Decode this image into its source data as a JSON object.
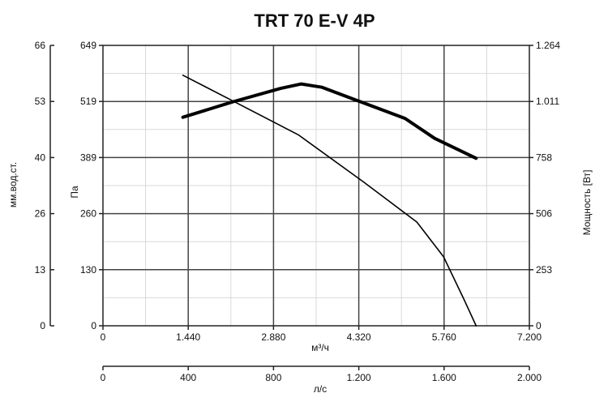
{
  "chart_data": {
    "type": "line",
    "title": "TRT 70 E-V 4P",
    "xlabel": "м³/ч",
    "ylabel": "Па",
    "x_ticks": [
      "0",
      "1.440",
      "2.880",
      "4.320",
      "5.760",
      "7.200"
    ],
    "xlim": [
      0,
      7200
    ],
    "y_ticks": [
      "0",
      "130",
      "260",
      "389",
      "519",
      "649"
    ],
    "ylim": [
      0,
      649
    ],
    "secondary_x": {
      "label": "л/с",
      "ticks": [
        "0",
        "400",
        "800",
        "1.200",
        "1.600",
        "2.000"
      ],
      "lim": [
        0,
        2000
      ]
    },
    "secondary_y_left": {
      "label": "мм.вод.ст.",
      "ticks": [
        "0",
        "13",
        "26",
        "40",
        "53",
        "66"
      ],
      "lim": [
        0,
        66
      ]
    },
    "secondary_y_right": {
      "label": "Мощность [Вт]",
      "ticks": [
        "0",
        "253",
        "506",
        "758",
        "1.011",
        "1.264"
      ],
      "lim": [
        0,
        1264
      ]
    },
    "grid": true,
    "series": [
      {
        "axis": "left",
        "values": [
          [
            1350,
            580
          ],
          [
            2200,
            520
          ],
          [
            3300,
            442
          ],
          [
            4400,
            333
          ],
          [
            5300,
            240
          ],
          [
            5750,
            160
          ],
          [
            6100,
            60
          ],
          [
            6300,
            0
          ]
        ]
      },
      {
        "axis": "right",
        "values": [
          [
            1350,
            940
          ],
          [
            2200,
            1010
          ],
          [
            3000,
            1070
          ],
          [
            3350,
            1090
          ],
          [
            3700,
            1075
          ],
          [
            4300,
            1015
          ],
          [
            5100,
            935
          ],
          [
            5600,
            845
          ],
          [
            6300,
            755
          ]
        ]
      }
    ]
  }
}
